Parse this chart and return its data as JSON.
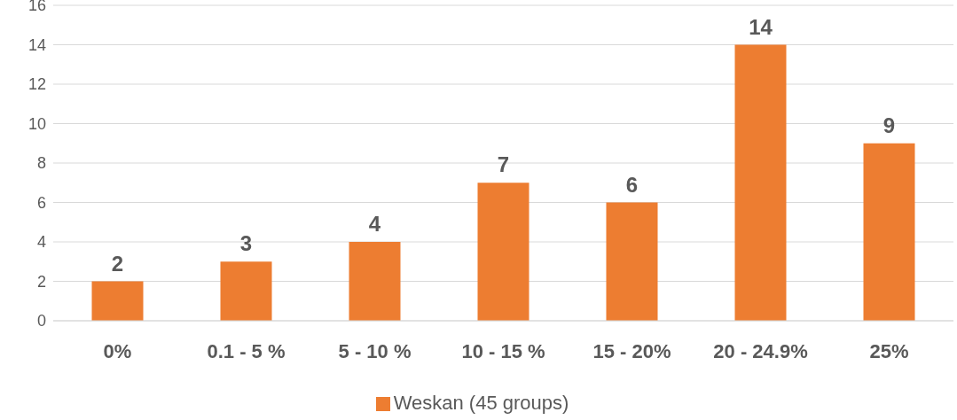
{
  "chart_data": {
    "type": "bar",
    "categories": [
      "0%",
      "0.1 - 5 %",
      "5 - 10 %",
      "10 - 15 %",
      "15 - 20%",
      "20 - 24.9%",
      "25%"
    ],
    "series": [
      {
        "name": "Weskan (45 groups)",
        "color": "#ed7d31",
        "values": [
          2,
          3,
          4,
          7,
          6,
          14,
          9
        ]
      }
    ],
    "ylim": [
      0,
      16
    ],
    "yticks": [
      0,
      2,
      4,
      6,
      8,
      10,
      12,
      14,
      16
    ],
    "grid": "y",
    "legend": "bottom",
    "data_labels": true
  }
}
